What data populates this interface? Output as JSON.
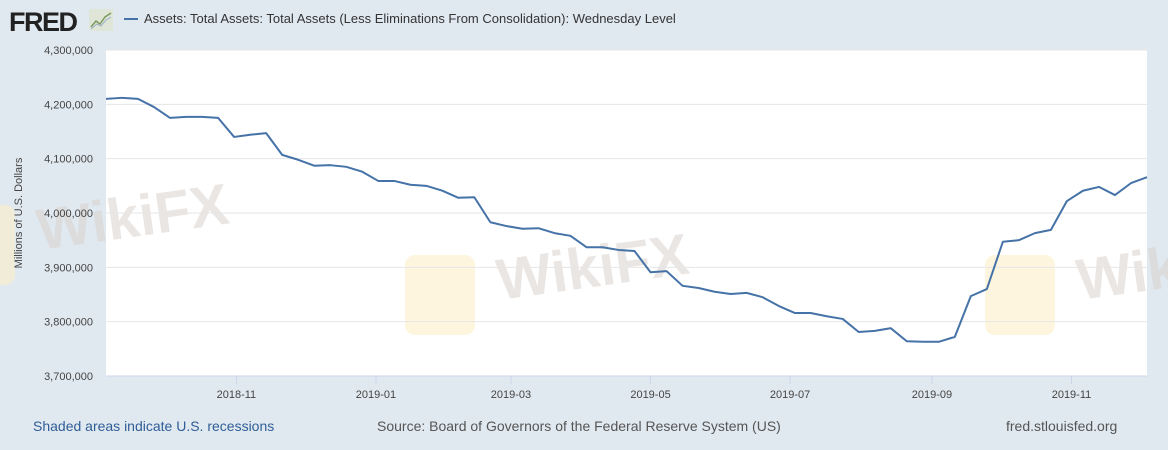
{
  "header": {
    "logo": "FRED",
    "logo_icon": "chart-line-icon"
  },
  "footer": {
    "recession_note": "Shaded areas indicate U.S. recessions",
    "source": "Source: Board of Governors of the Federal Reserve System (US)",
    "site": "fred.stlouisfed.org"
  },
  "watermark": "WikiFX",
  "colors": {
    "series": "#4572a7",
    "background": "#e1e9f0",
    "plot": "#ffffff"
  },
  "chart_data": {
    "type": "line",
    "title": "",
    "legend": [
      "Assets: Total Assets: Total Assets (Less Eliminations From Consolidation): Wednesday Level"
    ],
    "legend_position": "top-left",
    "xlabel": "",
    "ylabel": "Millions of U.S. Dollars",
    "ylim": [
      3700000,
      4300000
    ],
    "yticks": [
      "3,700,000",
      "3,800,000",
      "3,900,000",
      "4,000,000",
      "4,100,000",
      "4,200,000",
      "4,300,000"
    ],
    "ytick_values": [
      3700000,
      3800000,
      3900000,
      4000000,
      4100000,
      4200000,
      4300000
    ],
    "xlim": [
      "2018-09-05",
      "2019-12-04"
    ],
    "xticks": [
      "2018-11",
      "2019-01",
      "2019-03",
      "2019-05",
      "2019-07",
      "2019-09",
      "2019-11"
    ],
    "grid": true,
    "x_start": "2018-09-05",
    "x_interval_days": 7,
    "series": [
      {
        "name": "Assets: Total Assets: Total Assets (Less Eliminations From Consolidation): Wednesday Level",
        "values": [
          4210000,
          4212000,
          4210000,
          4195000,
          4175000,
          4177000,
          4177000,
          4175000,
          4140000,
          4144000,
          4147000,
          4107000,
          4098000,
          4087000,
          4088000,
          4085000,
          4076000,
          4059000,
          4059000,
          4052000,
          4050000,
          4041000,
          4028000,
          4029000,
          3983000,
          3976000,
          3971000,
          3972000,
          3963000,
          3958000,
          3937000,
          3937000,
          3932000,
          3930000,
          3891000,
          3893000,
          3866000,
          3862000,
          3855000,
          3851000,
          3853000,
          3845000,
          3829000,
          3816000,
          3816000,
          3810000,
          3805000,
          3781000,
          3783000,
          3788000,
          3764000,
          3763000,
          3763000,
          3772000,
          3847000,
          3860000,
          3947000,
          3950000,
          3963000,
          3969000,
          4022000,
          4041000,
          4048000,
          4033000,
          4055000,
          4066000
        ]
      }
    ]
  }
}
